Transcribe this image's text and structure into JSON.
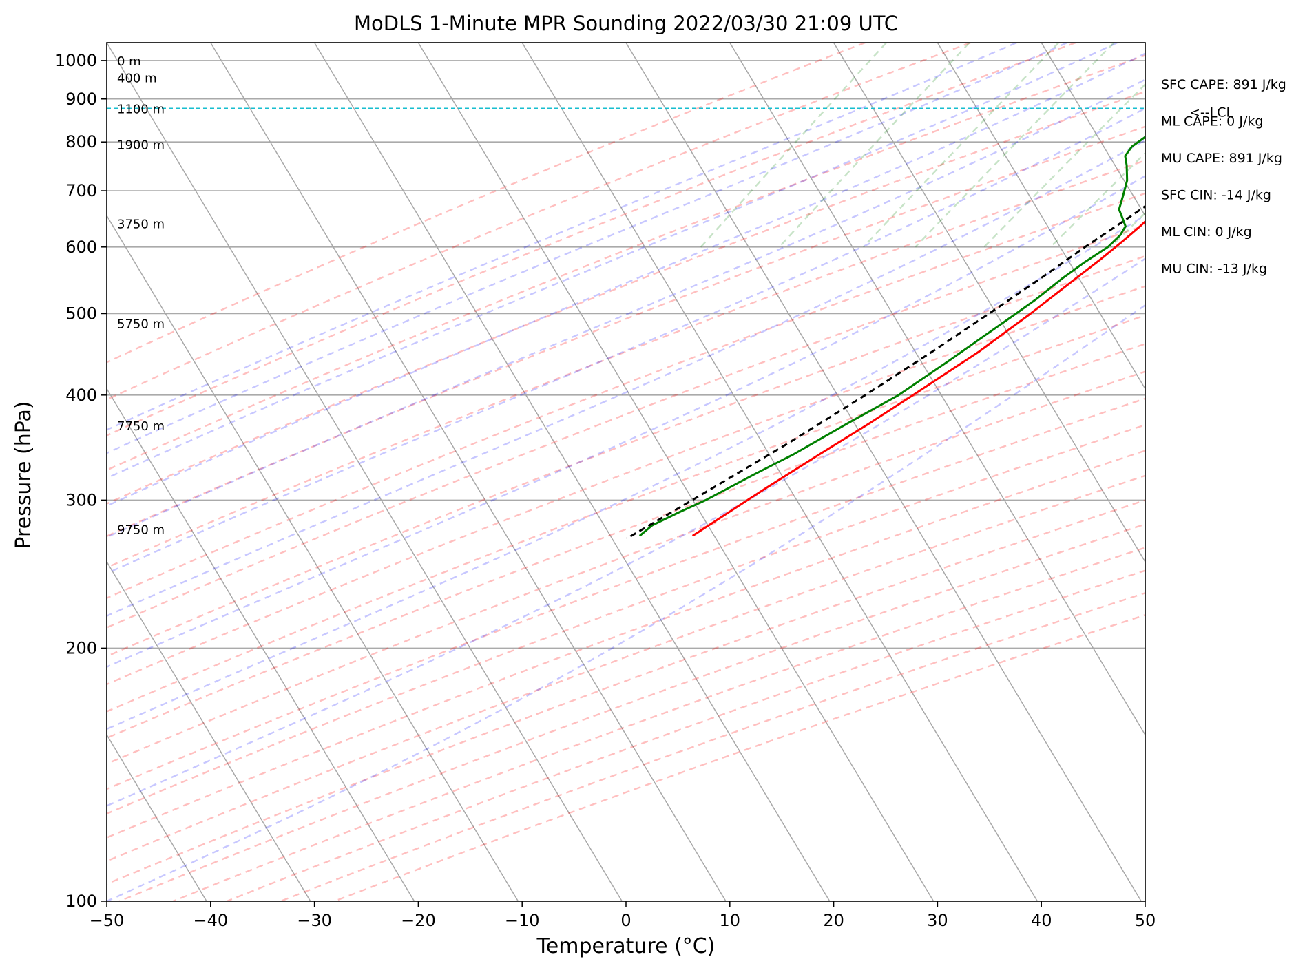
{
  "chart_data": {
    "type": "line",
    "chart_kind": "skew-T log-P sounding",
    "title": "MoDLS 1-Minute MPR Sounding 2022/03/30 21:09 UTC",
    "xlabel": "Temperature (°C)",
    "ylabel": "Pressure (hPa)",
    "xlim": [
      -50,
      50
    ],
    "ylim": [
      1050,
      100
    ],
    "y_scale": "log",
    "grid": true,
    "x_ticks": [
      -50,
      -40,
      -30,
      -20,
      -10,
      0,
      10,
      20,
      30,
      40,
      50
    ],
    "x_tick_labels": [
      "−50",
      "−40",
      "−30",
      "−20",
      "−10",
      "0",
      "10",
      "20",
      "30",
      "40",
      "50"
    ],
    "y_ticks": [
      100,
      200,
      300,
      400,
      500,
      600,
      700,
      800,
      900,
      1000
    ],
    "y_tick_labels": [
      "100",
      "200",
      "300",
      "400",
      "500",
      "600",
      "700",
      "800",
      "900",
      "1000"
    ],
    "isotherms": [
      -160,
      -150,
      -140,
      -130,
      -120,
      -110,
      -100,
      -90,
      -80,
      -70,
      -60,
      -50,
      -40,
      -30,
      -20,
      -10,
      0,
      10,
      20,
      30,
      40,
      50
    ],
    "dry_adiabats_theta_c": [
      -30,
      -20,
      -10,
      0,
      10,
      20,
      30,
      40,
      50,
      60,
      70,
      80,
      90,
      100,
      110,
      120,
      130,
      140,
      150,
      160,
      170,
      180,
      190,
      200
    ],
    "moist_adiabats_start_c": [
      -15,
      -10,
      -5,
      0,
      5,
      10,
      15,
      20,
      25,
      30,
      35
    ],
    "mixing_ratio_lines_gkg": [
      0.5,
      1,
      2,
      3,
      5,
      8,
      12,
      16,
      20
    ],
    "height_labels": [
      {
        "label": "0 m",
        "p": 1000
      },
      {
        "label": "400 m",
        "p": 955
      },
      {
        "label": "1100 m",
        "p": 877
      },
      {
        "label": "1900 m",
        "p": 795
      },
      {
        "label": "3750 m",
        "p": 640
      },
      {
        "label": "5750 m",
        "p": 487
      },
      {
        "label": "7750 m",
        "p": 368
      },
      {
        "label": "9750 m",
        "p": 277
      }
    ],
    "lcl": {
      "p": 877,
      "label": "<--LCL"
    },
    "stats": [
      "SFC CAPE: 891 J/kg",
      "ML CAPE: 0 J/kg",
      "MU CAPE: 891 J/kg",
      "SFC CIN: -14 J/kg",
      "ML CIN: 0 J/kg",
      "MU CIN: -13 J/kg"
    ],
    "series": [
      {
        "role": "temperature",
        "color": "#ff0000",
        "points": [
          [
            989,
            27.3
          ],
          [
            980,
            26.3
          ],
          [
            965,
            24.8
          ],
          [
            950,
            23.2
          ],
          [
            930,
            21.6
          ],
          [
            900,
            20.1
          ],
          [
            878,
            19.0
          ],
          [
            860,
            17.8
          ],
          [
            835,
            16.6
          ],
          [
            800,
            15.3
          ],
          [
            770,
            14.3
          ],
          [
            740,
            13.2
          ],
          [
            700,
            12.1
          ],
          [
            670,
            11.4
          ],
          [
            635,
            10.5
          ],
          [
            610,
            9.7
          ],
          [
            580,
            8.6
          ],
          [
            550,
            7.3
          ],
          [
            500,
            5.0
          ],
          [
            450,
            2.2
          ],
          [
            400,
            -1.6
          ],
          [
            370,
            -4.2
          ],
          [
            340,
            -7.2
          ],
          [
            310,
            -10.4
          ],
          [
            290,
            -12.6
          ],
          [
            272,
            -14.7
          ]
        ]
      },
      {
        "role": "dewpoint",
        "color": "#008000",
        "points": [
          [
            994,
            18.7
          ],
          [
            990,
            16.2
          ],
          [
            975,
            15.4
          ],
          [
            958,
            14.0
          ],
          [
            940,
            11.8
          ],
          [
            917,
            9.5
          ],
          [
            900,
            7.9
          ],
          [
            887,
            7.2
          ],
          [
            874,
            5.6
          ],
          [
            864,
            5.0
          ],
          [
            855,
            5.6
          ],
          [
            845,
            5.8
          ],
          [
            830,
            6.1
          ],
          [
            810,
            5.8
          ],
          [
            790,
            5.1
          ],
          [
            770,
            5.0
          ],
          [
            750,
            5.7
          ],
          [
            720,
            6.6
          ],
          [
            690,
            7.1
          ],
          [
            665,
            7.5
          ],
          [
            650,
            8.3
          ],
          [
            635,
            9.1
          ],
          [
            620,
            9.1
          ],
          [
            600,
            8.6
          ],
          [
            575,
            7.2
          ],
          [
            550,
            6.0
          ],
          [
            520,
            4.7
          ],
          [
            500,
            3.6
          ],
          [
            470,
            1.8
          ],
          [
            440,
            -0.1
          ],
          [
            400,
            -3.0
          ],
          [
            370,
            -6.3
          ],
          [
            340,
            -9.7
          ],
          [
            322,
            -12.3
          ],
          [
            300,
            -15.5
          ],
          [
            290,
            -17.4
          ],
          [
            280,
            -19.2
          ],
          [
            272,
            -19.8
          ]
        ]
      },
      {
        "role": "parcel",
        "color": "#000000",
        "dashed": true,
        "points": [
          [
            990,
            27.2
          ],
          [
            970,
            25.4
          ],
          [
            950,
            23.6
          ],
          [
            925,
            21.7
          ],
          [
            900,
            19.8
          ],
          [
            877,
            18.2
          ],
          [
            850,
            17.2
          ],
          [
            800,
            15.3
          ],
          [
            750,
            13.3
          ],
          [
            700,
            11.1
          ],
          [
            650,
            8.9
          ],
          [
            600,
            6.4
          ],
          [
            550,
            3.9
          ],
          [
            500,
            1.0
          ],
          [
            450,
            -2.3
          ],
          [
            400,
            -6.2
          ],
          [
            350,
            -10.9
          ],
          [
            300,
            -16.8
          ],
          [
            270,
            -20.9
          ]
        ]
      }
    ]
  }
}
